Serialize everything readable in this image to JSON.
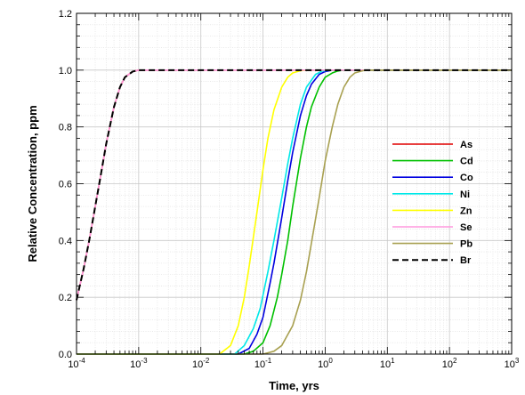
{
  "chart_data": {
    "type": "line",
    "title": "",
    "xlabel": "Time, yrs",
    "ylabel": "Relative Concentration, ppm",
    "xscale": "log",
    "xlim": [
      0.0001,
      1000
    ],
    "ylim": [
      0,
      1.2
    ],
    "x_ticks": [
      {
        "value": 0.0001,
        "base": "10",
        "exp": "-4"
      },
      {
        "value": 0.001,
        "base": "10",
        "exp": "-3"
      },
      {
        "value": 0.01,
        "base": "10",
        "exp": "-2"
      },
      {
        "value": 0.1,
        "base": "10",
        "exp": "-1"
      },
      {
        "value": 1,
        "base": "10",
        "exp": "0"
      },
      {
        "value": 10,
        "base": "10",
        "exp": "1"
      },
      {
        "value": 100,
        "base": "10",
        "exp": "2"
      },
      {
        "value": 1000,
        "base": "10",
        "exp": "3"
      }
    ],
    "y_ticks": [
      {
        "value": 0,
        "label": "0.0"
      },
      {
        "value": 0.2,
        "label": "0.2"
      },
      {
        "value": 0.4,
        "label": "0.4"
      },
      {
        "value": 0.6,
        "label": "0.6"
      },
      {
        "value": 0.8,
        "label": "0.8"
      },
      {
        "value": 1.0,
        "label": "1.0"
      },
      {
        "value": 1.2,
        "label": "1.2"
      }
    ],
    "grid": true,
    "legend_position": "right",
    "series": [
      {
        "name": "As",
        "color": "#e00000",
        "dash": "solid",
        "x": [
          0.0001,
          0.00013,
          0.00016,
          0.0002,
          0.00025,
          0.0003,
          0.0004,
          0.0005,
          0.0006,
          0.0008,
          0.001,
          0.0015,
          0.01,
          1000
        ],
        "y": [
          0.19,
          0.3,
          0.4,
          0.52,
          0.64,
          0.74,
          0.87,
          0.94,
          0.975,
          0.995,
          1.0,
          1.0,
          1.0,
          1.0
        ]
      },
      {
        "name": "Cd",
        "color": "#00c000",
        "dash": "solid",
        "x": [
          0.0001,
          0.05,
          0.07,
          0.1,
          0.13,
          0.17,
          0.2,
          0.25,
          0.3,
          0.4,
          0.5,
          0.6,
          0.8,
          1.0,
          1.3,
          1.6,
          2.0,
          1000
        ],
        "y": [
          0.0,
          0.0,
          0.01,
          0.04,
          0.1,
          0.2,
          0.28,
          0.4,
          0.52,
          0.69,
          0.8,
          0.87,
          0.94,
          0.975,
          0.99,
          0.997,
          1.0,
          1.0
        ]
      },
      {
        "name": "Co",
        "color": "#0000e0",
        "dash": "solid",
        "x": [
          0.0001,
          0.04,
          0.06,
          0.08,
          0.1,
          0.13,
          0.15,
          0.2,
          0.25,
          0.3,
          0.4,
          0.5,
          0.6,
          0.8,
          1.0,
          1.3,
          1000
        ],
        "y": [
          0.0,
          0.0,
          0.02,
          0.07,
          0.13,
          0.25,
          0.32,
          0.48,
          0.61,
          0.71,
          0.84,
          0.91,
          0.95,
          0.985,
          0.995,
          1.0,
          1.0
        ]
      },
      {
        "name": "Ni",
        "color": "#00e8e8",
        "dash": "solid",
        "x": [
          0.0001,
          0.035,
          0.05,
          0.07,
          0.09,
          0.12,
          0.15,
          0.2,
          0.25,
          0.3,
          0.4,
          0.5,
          0.7,
          0.9,
          1.2,
          1000
        ],
        "y": [
          0.0,
          0.0,
          0.03,
          0.09,
          0.16,
          0.29,
          0.4,
          0.55,
          0.67,
          0.76,
          0.88,
          0.94,
          0.985,
          0.997,
          1.0,
          1.0
        ]
      },
      {
        "name": "Zn",
        "color": "#ffff00",
        "dash": "solid",
        "x": [
          0.0001,
          0.02,
          0.03,
          0.04,
          0.05,
          0.06,
          0.08,
          0.1,
          0.12,
          0.15,
          0.2,
          0.25,
          0.3,
          0.4,
          0.5,
          0.6,
          1000
        ],
        "y": [
          0.0,
          0.0,
          0.03,
          0.1,
          0.2,
          0.31,
          0.5,
          0.65,
          0.76,
          0.86,
          0.94,
          0.975,
          0.99,
          0.998,
          1.0,
          1.0,
          1.0
        ]
      },
      {
        "name": "Se",
        "color": "#ff99dd",
        "dash": "solid",
        "x": [
          0.0001,
          0.00013,
          0.00016,
          0.0002,
          0.00025,
          0.0003,
          0.0004,
          0.0005,
          0.0006,
          0.0008,
          0.001,
          0.0015,
          0.01,
          1000
        ],
        "y": [
          0.19,
          0.3,
          0.4,
          0.52,
          0.64,
          0.74,
          0.87,
          0.94,
          0.975,
          0.995,
          1.0,
          1.0,
          1.0,
          1.0
        ]
      },
      {
        "name": "Pb",
        "color": "#a8a050",
        "dash": "solid",
        "x": [
          0.0001,
          0.1,
          0.15,
          0.2,
          0.3,
          0.4,
          0.5,
          0.6,
          0.8,
          1.0,
          1.3,
          1.6,
          2.0,
          2.5,
          3.0,
          4.0,
          5.0,
          1000
        ],
        "y": [
          0.0,
          0.0,
          0.01,
          0.03,
          0.1,
          0.19,
          0.29,
          0.39,
          0.55,
          0.68,
          0.8,
          0.88,
          0.94,
          0.975,
          0.99,
          0.998,
          1.0,
          1.0
        ]
      },
      {
        "name": "Br",
        "color": "#000000",
        "dash": "dashed",
        "x": [
          0.0001,
          0.00013,
          0.00016,
          0.0002,
          0.00025,
          0.0003,
          0.0004,
          0.0005,
          0.0006,
          0.0008,
          0.001,
          0.0015,
          0.01,
          1000
        ],
        "y": [
          0.19,
          0.3,
          0.4,
          0.52,
          0.64,
          0.74,
          0.87,
          0.94,
          0.975,
          0.995,
          1.0,
          1.0,
          1.0,
          1.0
        ]
      }
    ]
  }
}
